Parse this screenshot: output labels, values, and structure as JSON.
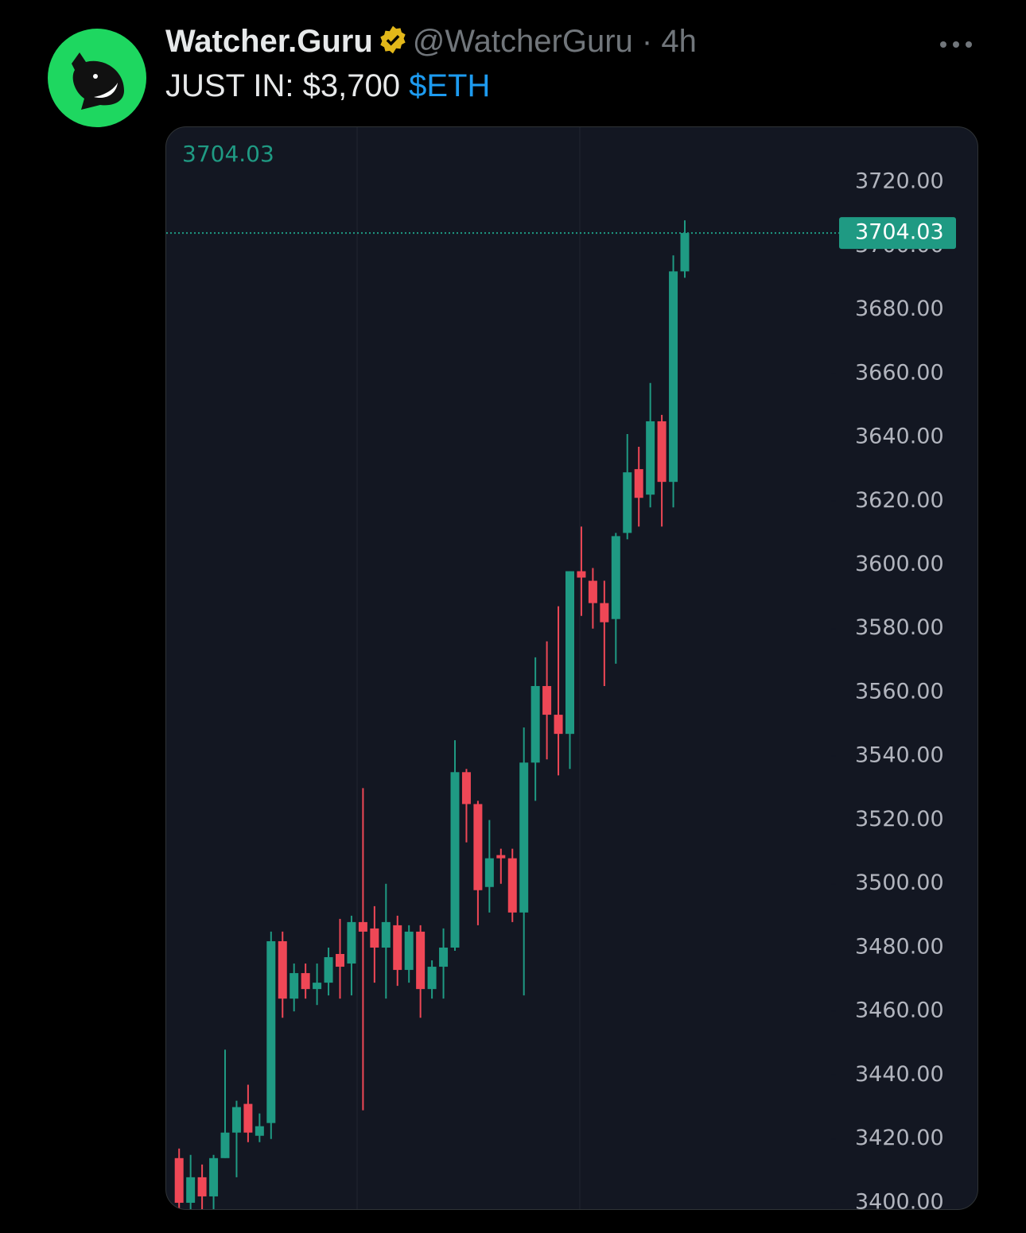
{
  "tweet": {
    "author": {
      "name": "Watcher.Guru",
      "handle": "@WatcherGuru"
    },
    "separator": "·",
    "time": "4h",
    "text": "JUST IN: $3,700",
    "cashtag": "$ETH"
  },
  "chart_data": {
    "type": "candlestick",
    "last_price": 3704.03,
    "up_color": "#1f9a83",
    "down_color": "#ef4756",
    "ylim": [
      3398,
      3737.2
    ],
    "yticks": [
      {
        "value": 3400,
        "label": "3400.00"
      },
      {
        "value": 3420,
        "label": "3420.00"
      },
      {
        "value": 3440,
        "label": "3440.00"
      },
      {
        "value": 3460,
        "label": "3460.00"
      },
      {
        "value": 3480,
        "label": "3480.00"
      },
      {
        "value": 3500,
        "label": "3500.00"
      },
      {
        "value": 3520,
        "label": "3520.00"
      },
      {
        "value": 3540,
        "label": "3540.00"
      },
      {
        "value": 3560,
        "label": "3560.00"
      },
      {
        "value": 3580,
        "label": "3580.00"
      },
      {
        "value": 3600,
        "label": "3600.00"
      },
      {
        "value": 3620,
        "label": "3620.00"
      },
      {
        "value": 3640,
        "label": "3640.00"
      },
      {
        "value": 3660,
        "label": "3660.00"
      },
      {
        "value": 3680,
        "label": "3680.00"
      },
      {
        "value": 3700,
        "label": "3700.00"
      },
      {
        "value": 3720,
        "label": "3720.00"
      }
    ],
    "open": [
      3414,
      3400,
      3408,
      3402,
      3414,
      3422,
      3431,
      3421,
      3425,
      3482,
      3464,
      3472,
      3467,
      3469,
      3478,
      3475,
      3488,
      3486,
      3480,
      3487,
      3473,
      3485,
      3467,
      3474,
      3480,
      3535,
      3525,
      3499,
      3509,
      3508,
      3491,
      3538,
      3562,
      3553,
      3547,
      3598,
      3595,
      3588,
      3583,
      3610,
      3630,
      3622,
      3645,
      3626,
      3692
    ],
    "high": [
      3417,
      3415,
      3412,
      3415,
      3448,
      3432,
      3437,
      3428,
      3485,
      3485,
      3475,
      3475,
      3475,
      3480,
      3489,
      3490,
      3530,
      3493,
      3500,
      3490,
      3487,
      3487,
      3476,
      3486,
      3545,
      3536,
      3526,
      3520,
      3511,
      3511,
      3549,
      3571,
      3576,
      3587,
      3598,
      3612,
      3599,
      3595,
      3610,
      3641,
      3637,
      3657,
      3647,
      3697,
      3708
    ],
    "low": [
      3398,
      3398,
      3398,
      3398,
      3414,
      3408,
      3419,
      3419,
      3420,
      3458,
      3460,
      3464,
      3462,
      3465,
      3464,
      3465,
      3429,
      3469,
      3464,
      3468,
      3469,
      3458,
      3464,
      3464,
      3479,
      3513,
      3487,
      3491,
      3500,
      3488,
      3465,
      3526,
      3539,
      3534,
      3536,
      3584,
      3580,
      3562,
      3569,
      3608,
      3612,
      3618,
      3612,
      3618,
      3690
    ],
    "close": [
      3400,
      3408,
      3402,
      3414,
      3422,
      3430,
      3422,
      3424,
      3482,
      3464,
      3472,
      3467,
      3469,
      3477,
      3474,
      3488,
      3485,
      3480,
      3488,
      3473,
      3485,
      3467,
      3474,
      3480,
      3535,
      3525,
      3498,
      3508,
      3508,
      3491,
      3538,
      3562,
      3553,
      3547,
      3598,
      3596,
      3588,
      3582,
      3609,
      3629,
      3621,
      3645,
      3626,
      3692,
      3704.03
    ]
  }
}
